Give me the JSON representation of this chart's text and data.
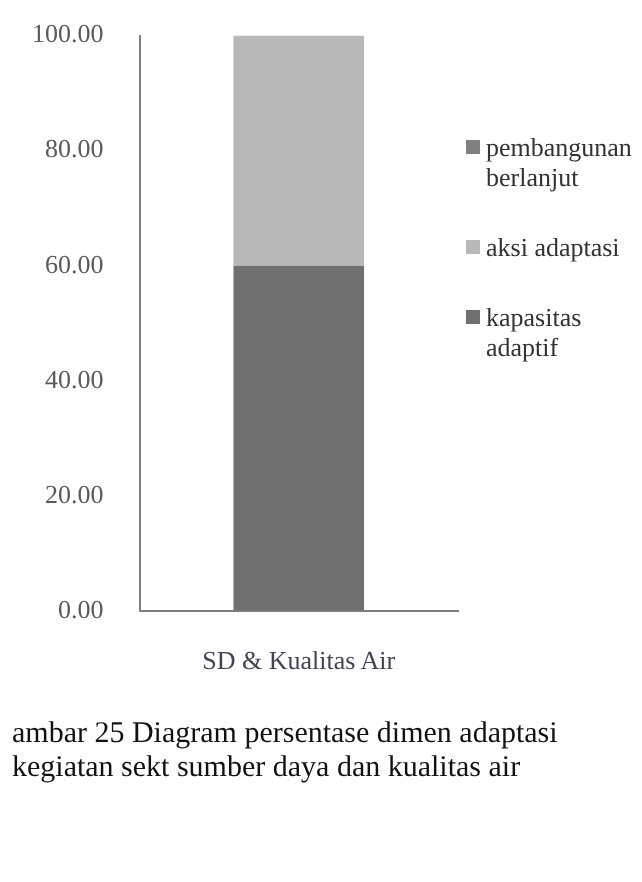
{
  "chart_data": {
    "type": "bar",
    "stacked": true,
    "categories": [
      "SD & Kualitas Air"
    ],
    "series": [
      {
        "name": "kapasitas adaptif",
        "color": "#707070",
        "values": [
          60
        ]
      },
      {
        "name": "aksi adaptasi",
        "color": "#b8b8b8",
        "values": [
          40
        ]
      },
      {
        "name": "pembangunan berlanjut",
        "color": "#808080",
        "values": [
          0
        ]
      }
    ],
    "ylim": [
      0,
      100
    ],
    "yticks": [
      {
        "value": 0,
        "label": "0.00"
      },
      {
        "value": 20,
        "label": "20.00"
      },
      {
        "value": 40,
        "label": "40.00"
      },
      {
        "value": 60,
        "label": "60.00"
      },
      {
        "value": 80,
        "label": "80.00"
      },
      {
        "value": 100,
        "label": "100.00"
      }
    ],
    "grid": false,
    "legend": "right",
    "annotations": [
      "ambar 25 Diagram persentase dimen adaptasi kegiatan sekt sumber daya dan kualitas air"
    ]
  }
}
